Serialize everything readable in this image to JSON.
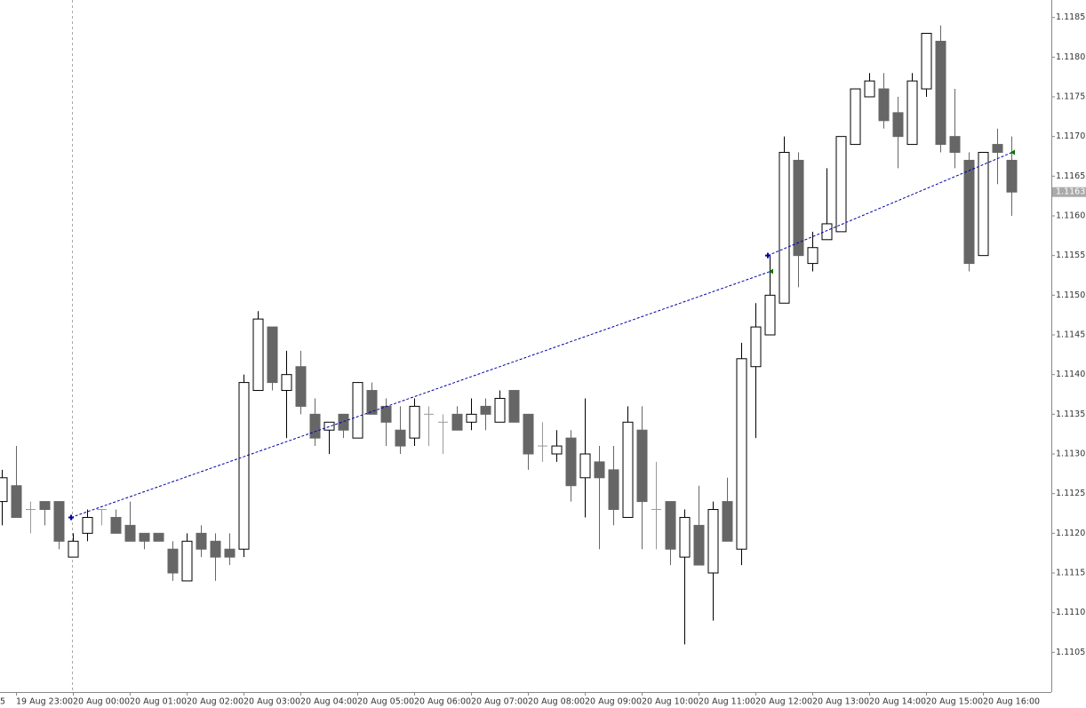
{
  "chart_data": {
    "type": "candlestick",
    "left_edge_label": "5",
    "categories": [
      null,
      "19 Aug 23:00",
      null,
      null,
      null,
      "20 Aug 00:00",
      null,
      null,
      null,
      "20 Aug 01:00",
      null,
      null,
      null,
      "20 Aug 02:00",
      null,
      null,
      null,
      "20 Aug 03:00",
      null,
      null,
      null,
      "20 Aug 04:00",
      null,
      null,
      null,
      "20 Aug 05:00",
      null,
      null,
      null,
      "20 Aug 06:00",
      null,
      null,
      null,
      "20 Aug 07:00",
      null,
      null,
      null,
      "20 Aug 08:00",
      null,
      null,
      null,
      "20 Aug 09:00",
      null,
      null,
      null,
      "20 Aug 10:00",
      null,
      null,
      null,
      "20 Aug 11:00",
      null,
      null,
      null,
      "20 Aug 12:00",
      null,
      null,
      null,
      "20 Aug 13:00",
      null,
      null,
      null,
      "20 Aug 14:00",
      null,
      null,
      null,
      "20 Aug 15:00",
      null,
      null,
      null,
      "20 Aug 16:00",
      null,
      null
    ],
    "open": [
      1.1124,
      1.1126,
      1.1123,
      1.1124,
      1.1124,
      1.1117,
      1.112,
      1.1123,
      1.1122,
      1.1121,
      1.112,
      1.112,
      1.1118,
      1.1114,
      1.112,
      1.1119,
      1.1118,
      1.1118,
      1.1138,
      1.1146,
      1.1138,
      1.1141,
      1.1135,
      1.1133,
      1.1135,
      1.1132,
      1.1138,
      1.1136,
      1.1133,
      1.1132,
      1.1135,
      1.1134,
      1.1135,
      1.1134,
      1.1136,
      1.1134,
      1.1138,
      1.1135,
      1.1131,
      1.113,
      1.1132,
      1.1127,
      1.1129,
      1.1128,
      1.1122,
      1.1133,
      1.1123,
      1.1124,
      1.1117,
      1.1121,
      1.1115,
      1.1124,
      1.1118,
      1.1141,
      1.1145,
      1.1149,
      1.1167,
      1.1154,
      1.1157,
      1.1158,
      1.1169,
      1.1175,
      1.1176,
      1.1173,
      1.1169,
      1.1176,
      1.1182,
      1.117,
      1.1167,
      1.1155,
      1.1169,
      1.1167
    ],
    "high": [
      1.1128,
      1.1131,
      1.1124,
      1.1124,
      1.1124,
      1.112,
      1.1123,
      1.1123,
      1.1123,
      1.1124,
      1.112,
      1.112,
      1.1119,
      1.112,
      1.1121,
      1.112,
      1.112,
      1.114,
      1.1148,
      1.1146,
      1.1143,
      1.1143,
      1.1137,
      1.1134,
      1.1135,
      1.1139,
      1.1139,
      1.1137,
      1.1136,
      1.1137,
      1.1136,
      1.1135,
      1.1136,
      1.1137,
      1.1137,
      1.1138,
      1.1138,
      1.1135,
      1.1134,
      1.1133,
      1.1133,
      1.1137,
      1.1131,
      1.1131,
      1.1136,
      1.1136,
      1.1129,
      1.1124,
      1.1123,
      1.1126,
      1.1124,
      1.1127,
      1.1144,
      1.1149,
      1.1155,
      1.117,
      1.1168,
      1.1158,
      1.1166,
      1.117,
      1.1176,
      1.1178,
      1.1178,
      1.1175,
      1.1178,
      1.1183,
      1.1184,
      1.1176,
      1.1168,
      1.1168,
      1.1171,
      1.117
    ],
    "low": [
      1.1121,
      1.1122,
      1.112,
      1.1121,
      1.1118,
      1.1117,
      1.1119,
      1.1121,
      1.112,
      1.1119,
      1.1118,
      1.1119,
      1.1114,
      1.1114,
      1.1117,
      1.1114,
      1.1116,
      1.1117,
      1.1138,
      1.1138,
      1.1132,
      1.1135,
      1.1131,
      1.113,
      1.1132,
      1.1132,
      1.1135,
      1.1131,
      1.113,
      1.1131,
      1.1131,
      1.113,
      1.1133,
      1.1133,
      1.1133,
      1.1134,
      1.1134,
      1.1128,
      1.1129,
      1.1129,
      1.1124,
      1.1122,
      1.1118,
      1.1121,
      1.1122,
      1.1118,
      1.1118,
      1.1116,
      1.1106,
      1.1116,
      1.1109,
      1.1119,
      1.1116,
      1.1132,
      1.1145,
      1.1149,
      1.1151,
      1.1153,
      1.1157,
      1.1158,
      1.1169,
      1.1175,
      1.1171,
      1.1166,
      1.1169,
      1.1175,
      1.1168,
      1.1166,
      1.1153,
      1.1155,
      1.1164,
      1.116
    ],
    "close": [
      1.1127,
      1.1122,
      1.1123,
      1.1123,
      1.1119,
      1.1119,
      1.1122,
      1.1123,
      1.112,
      1.1119,
      1.1119,
      1.1119,
      1.1115,
      1.1119,
      1.1118,
      1.1117,
      1.1117,
      1.1139,
      1.1147,
      1.1139,
      1.114,
      1.1136,
      1.1132,
      1.1134,
      1.1133,
      1.1139,
      1.1135,
      1.1134,
      1.1131,
      1.1136,
      1.1135,
      1.1134,
      1.1133,
      1.1135,
      1.1135,
      1.1137,
      1.1134,
      1.113,
      1.1131,
      1.1131,
      1.1126,
      1.113,
      1.1127,
      1.1123,
      1.1134,
      1.1124,
      1.1123,
      1.1118,
      1.1122,
      1.1116,
      1.1123,
      1.1119,
      1.1142,
      1.1146,
      1.115,
      1.1168,
      1.1155,
      1.1156,
      1.1159,
      1.117,
      1.1176,
      1.1177,
      1.1172,
      1.117,
      1.1177,
      1.1183,
      1.1169,
      1.1168,
      1.1154,
      1.1168,
      1.1168,
      1.1163
    ],
    "up_color": "#ffffff",
    "down_color": "#666666",
    "outline_color": "#000000",
    "doji_color": "#999999",
    "current_price": 1.1163,
    "trades": [
      {
        "entry_bar": 5,
        "entry_price": 1.1122,
        "exit_bar": 54,
        "exit_price": 1.1153,
        "color": "#0000aa"
      },
      {
        "entry_bar": 54,
        "entry_price": 1.1155,
        "exit_bar": 71,
        "exit_price": 1.1168,
        "color": "#0000aa"
      }
    ],
    "ylim": [
      1.11,
      1.11872
    ],
    "yticks": [
      1.1105,
      {
        "value": 1.111,
        "label": "1.1110"
      },
      1.1115,
      {
        "value": 1.112,
        "label": "1.1120"
      },
      1.1125,
      {
        "value": 1.113,
        "label": "1.1130"
      },
      1.1135,
      {
        "value": 1.114,
        "label": "1.1140"
      },
      1.1145,
      {
        "value": 1.115,
        "label": "1.1150"
      },
      1.1155,
      {
        "value": 1.116,
        "label": "1.1160"
      },
      1.1165,
      {
        "value": 1.117,
        "label": "1.1170"
      },
      1.1175,
      {
        "value": 1.118,
        "label": "1.1180"
      },
      1.1185
    ]
  }
}
